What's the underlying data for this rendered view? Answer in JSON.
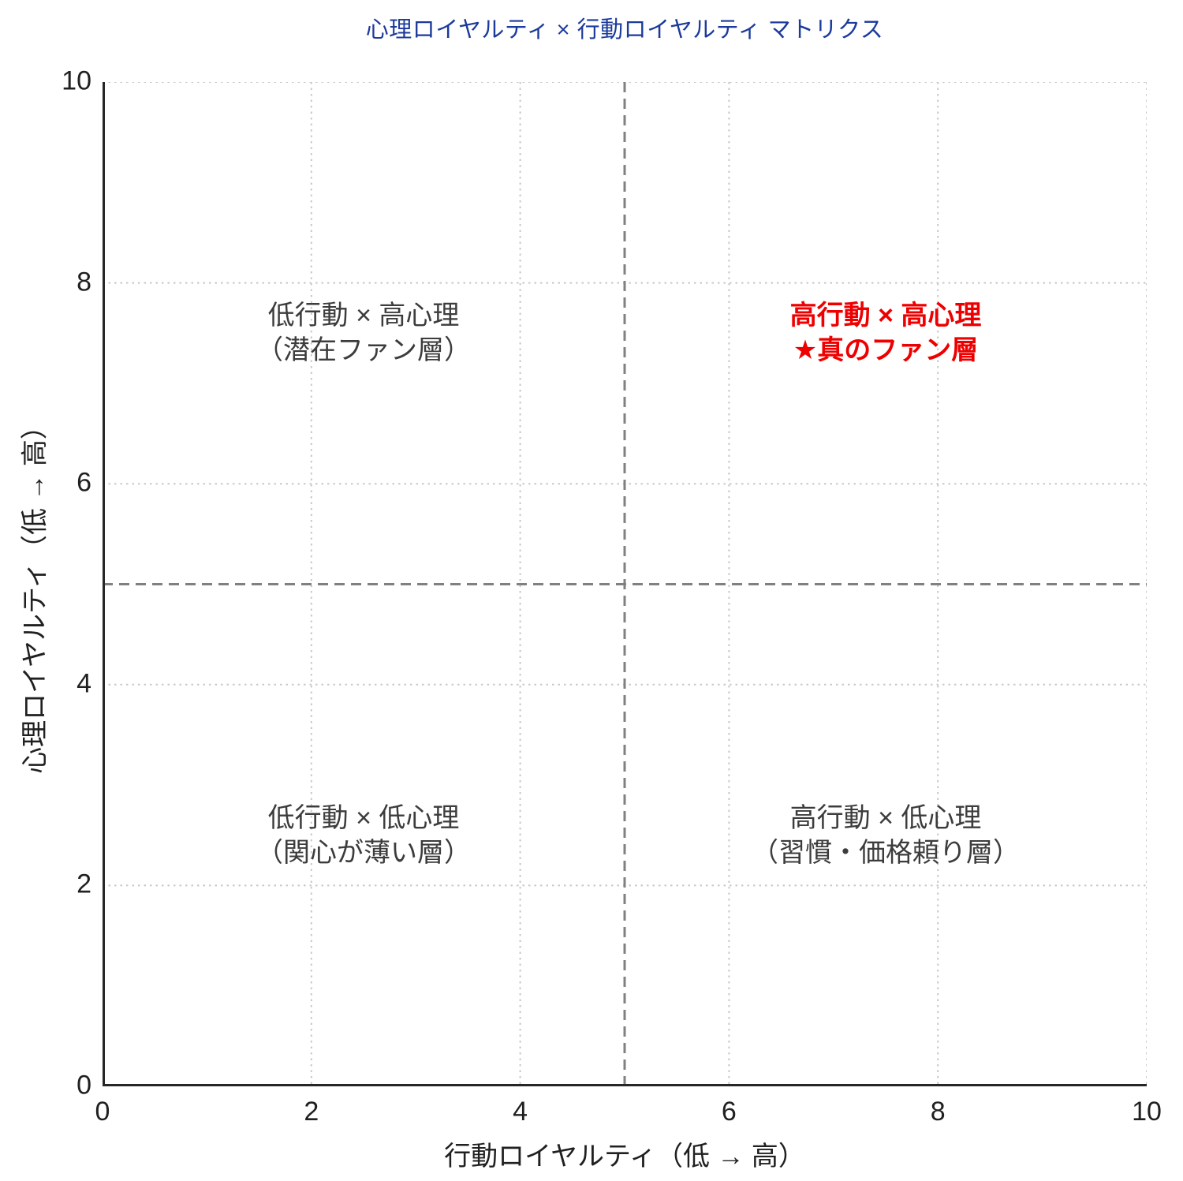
{
  "chart_data": {
    "type": "scatter",
    "title": "心理ロイヤルティ × 行動ロイヤルティ マトリクス",
    "xlabel": "行動ロイヤルティ（低 → 高）",
    "ylabel": "心理ロイヤルティ（低 → 高）",
    "xlim": [
      0,
      10
    ],
    "ylim": [
      0,
      10
    ],
    "x_ticks": [
      "0",
      "2",
      "4",
      "6",
      "8",
      "10"
    ],
    "y_ticks": [
      "0",
      "2",
      "4",
      "6",
      "8",
      "10"
    ],
    "x_tick_values": [
      0,
      2,
      4,
      6,
      8,
      10
    ],
    "y_tick_values": [
      0,
      2,
      4,
      6,
      8,
      10
    ],
    "grid": "dotted",
    "legend": "none",
    "series": [],
    "dividers": {
      "x": 5,
      "y": 5,
      "style": "dashed"
    },
    "annotations": [
      {
        "id": "upper-left-quadrant",
        "lines": [
          "低行動 × 高心理",
          "（潜在ファン層）"
        ],
        "x": 2.5,
        "y": 7.5,
        "color": "#3c3c3c",
        "bold": false
      },
      {
        "id": "upper-right-quadrant",
        "lines": [
          "高行動 × 高心理",
          "★真のファン層"
        ],
        "x": 7.5,
        "y": 7.5,
        "color": "#ee0000",
        "bold": true
      },
      {
        "id": "lower-left-quadrant",
        "lines": [
          "低行動 × 低心理",
          "（関心が薄い層）"
        ],
        "x": 2.5,
        "y": 2.5,
        "color": "#3c3c3c",
        "bold": false
      },
      {
        "id": "lower-right-quadrant",
        "lines": [
          "高行動 × 低心理",
          "（習慣・価格頼り層）"
        ],
        "x": 7.5,
        "y": 2.5,
        "color": "#3c3c3c",
        "bold": false
      }
    ],
    "colors": {
      "title": "#1b3a9b",
      "annotation_text": "#3c3c3c",
      "highlight_red": "#ee0000",
      "spine": "#262626",
      "divider": "#808080",
      "grid": "#c8c8c8",
      "tick_text": "#202020",
      "background": "#ffffff"
    }
  }
}
